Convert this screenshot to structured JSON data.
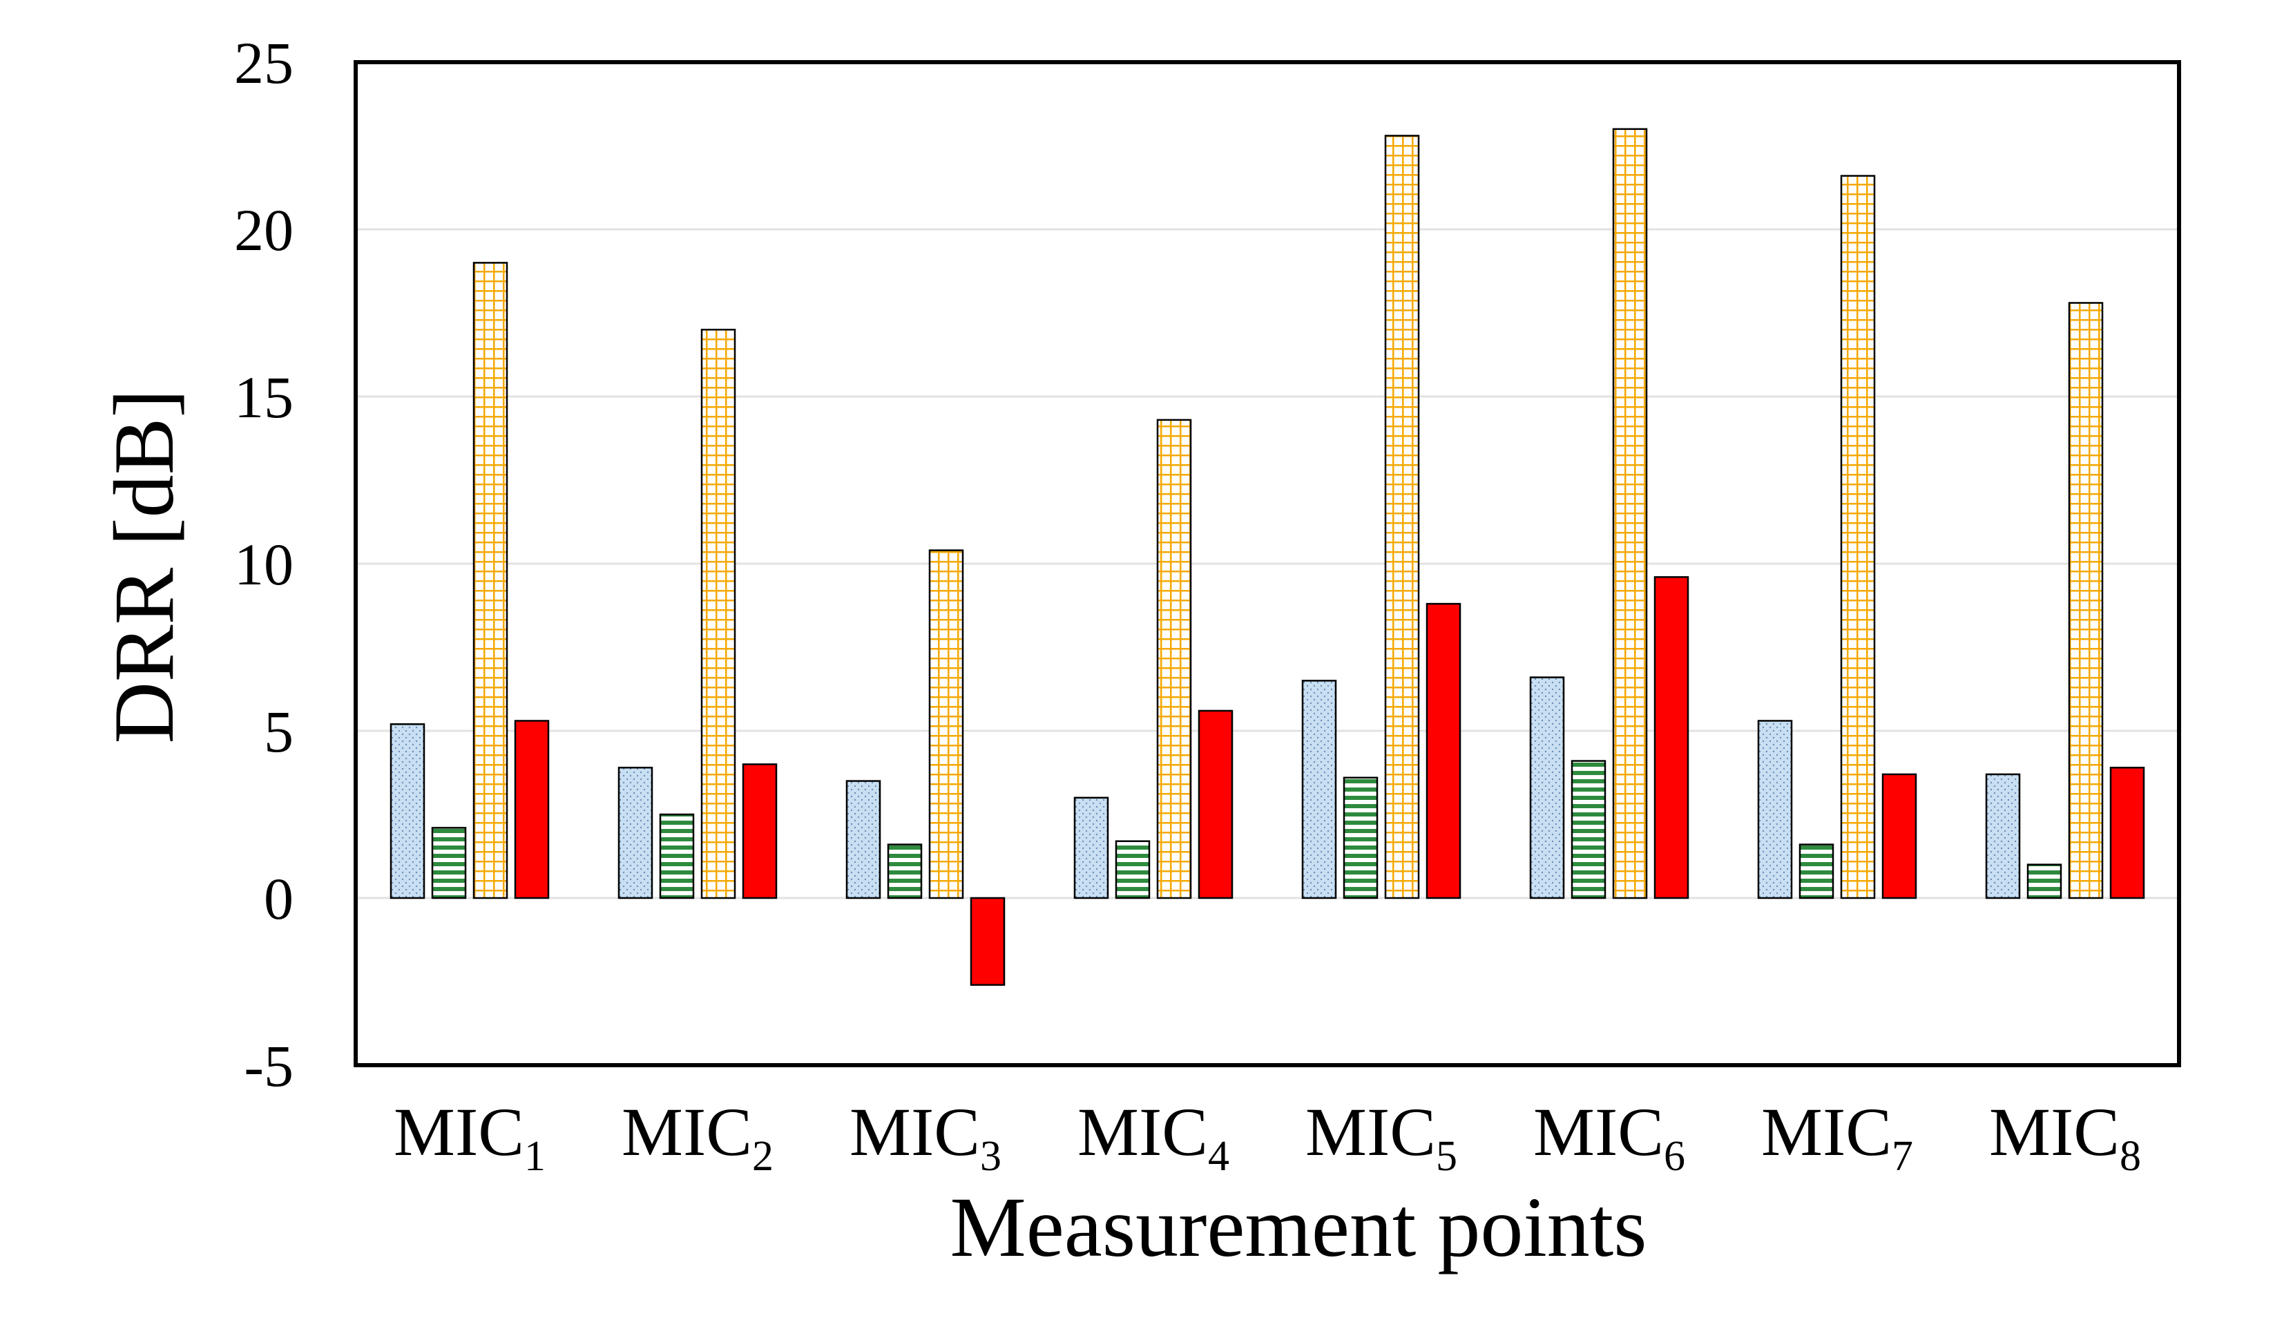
{
  "chart_data": {
    "type": "bar",
    "title": "",
    "xlabel": "Measurement points",
    "ylabel": "DRR [dB]",
    "ylim": [
      -5,
      25
    ],
    "yticks": [
      -5,
      0,
      5,
      10,
      15,
      20,
      25
    ],
    "grid": true,
    "legend": "none",
    "categories": [
      {
        "base": "MIC",
        "sub": "1"
      },
      {
        "base": "MIC",
        "sub": "2"
      },
      {
        "base": "MIC",
        "sub": "3"
      },
      {
        "base": "MIC",
        "sub": "4"
      },
      {
        "base": "MIC",
        "sub": "5"
      },
      {
        "base": "MIC",
        "sub": "6"
      },
      {
        "base": "MIC",
        "sub": "7"
      },
      {
        "base": "MIC",
        "sub": "8"
      }
    ],
    "series": [
      {
        "name": "series-1",
        "color": "#c9dff2",
        "pattern": "dots",
        "values": [
          5.2,
          3.9,
          3.5,
          3.0,
          6.5,
          6.6,
          5.3,
          3.7
        ]
      },
      {
        "name": "series-2",
        "color": "#2e8b3e",
        "pattern": "hstripes",
        "values": [
          2.1,
          2.5,
          1.6,
          1.7,
          3.6,
          4.1,
          1.6,
          1.0
        ]
      },
      {
        "name": "series-3",
        "color": "#f5a800",
        "pattern": "grid",
        "values": [
          19.0,
          17.0,
          10.4,
          14.3,
          22.8,
          23.0,
          21.6,
          17.8
        ]
      },
      {
        "name": "series-4",
        "color": "#ff0000",
        "pattern": "solid",
        "values": [
          5.3,
          4.0,
          -2.6,
          5.6,
          8.8,
          9.6,
          3.7,
          3.9
        ]
      }
    ]
  }
}
